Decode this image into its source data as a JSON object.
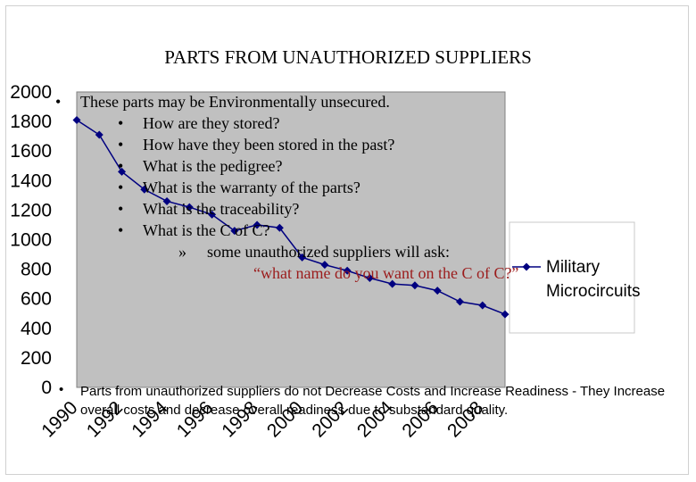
{
  "title": "PARTS FROM UNAUTHORIZED SUPPLIERS",
  "bullets": {
    "main": "These parts may be Environmentally unsecured.",
    "sub": [
      "How are they stored?",
      "How have they been stored in the past?",
      "What is the pedigree?",
      "What is the warranty of the parts?",
      "What is the traceability?",
      "What is the C of C?"
    ],
    "third": "some unauthorized suppliers will ask:",
    "quote": "“what name do you want on the C of C?”",
    "bottom": "Parts from unauthorized suppliers do not Decrease Costs and Increase Readiness - They Increase overall costs and decrease overall readiness due to substandard quality.",
    "bullet_char": "•",
    "sub_bullet_char": "•",
    "third_bullet_char": "»"
  },
  "chart_data": {
    "type": "line",
    "title": "",
    "xlabel": "",
    "ylabel": "",
    "ylim": [
      0,
      2000
    ],
    "y_ticks": [
      0,
      200,
      400,
      600,
      800,
      1000,
      1200,
      1400,
      1600,
      1800,
      2000
    ],
    "x_ticks": [
      "1990",
      "1992",
      "1994",
      "1996",
      "1998",
      "2000",
      "2002",
      "2004",
      "2006",
      "2008"
    ],
    "xlim": [
      1990,
      2009
    ],
    "grid": false,
    "legend": "right",
    "plot_bg": "#c0c0c0",
    "series": [
      {
        "name": "Military Microcircuits",
        "color": "#000080",
        "x": [
          1990,
          1991,
          1992,
          1993,
          1994,
          1995,
          1996,
          1997,
          1998,
          1999,
          2000,
          2001,
          2002,
          2003,
          2004,
          2005,
          2006,
          2007,
          2008,
          2009
        ],
        "values": [
          1810,
          1710,
          1460,
          1340,
          1260,
          1220,
          1170,
          1060,
          1100,
          1080,
          880,
          830,
          790,
          740,
          700,
          690,
          655,
          580,
          555,
          495
        ]
      }
    ],
    "legend_lines": [
      "Military",
      "Microcircuits"
    ]
  }
}
